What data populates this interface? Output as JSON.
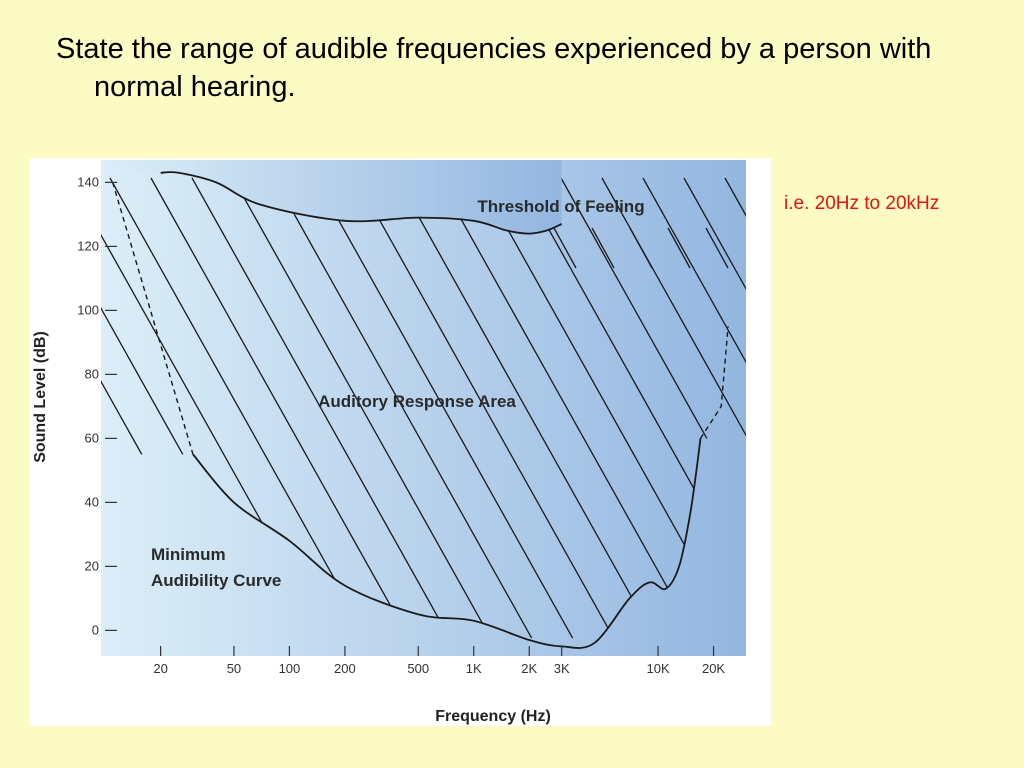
{
  "slide": {
    "question": "State the range of audible frequencies experienced by a person with normal hearing.",
    "answer": "i.e. 20Hz to 20kHz",
    "background_color": "#fdfbc4",
    "answer_color": "#e0150f"
  },
  "chart_data": {
    "type": "area",
    "title": "",
    "xlabel": "Frequency (Hz)",
    "ylabel": "Sound Level (dB)",
    "x_scale": "log",
    "x_ticks": [
      {
        "value": 20,
        "label": "20"
      },
      {
        "value": 50,
        "label": "50"
      },
      {
        "value": 100,
        "label": "100"
      },
      {
        "value": 200,
        "label": "200"
      },
      {
        "value": 500,
        "label": "500"
      },
      {
        "value": 1000,
        "label": "1K"
      },
      {
        "value": 2000,
        "label": "2K"
      },
      {
        "value": 3000,
        "label": "3K"
      },
      {
        "value": 10000,
        "label": "10K"
      },
      {
        "value": 20000,
        "label": "20K"
      }
    ],
    "y_ticks": [
      0,
      20,
      40,
      60,
      80,
      100,
      120,
      140
    ],
    "ylim": [
      -8,
      147
    ],
    "grid": false,
    "annotations": {
      "threshold_label": "Threshold of Feeling",
      "area_label": "Auditory Response Area",
      "min_curve_label_line1": "Minimum",
      "min_curve_label_line2": "Audibility Curve"
    },
    "series": [
      {
        "name": "Threshold of Feeling",
        "points": [
          [
            20,
            143
          ],
          [
            25,
            143
          ],
          [
            40,
            140
          ],
          [
            70,
            133
          ],
          [
            200,
            128
          ],
          [
            500,
            129
          ],
          [
            1000,
            128
          ],
          [
            1500,
            125
          ],
          [
            2000,
            124
          ],
          [
            2500,
            125
          ],
          [
            3000,
            127
          ]
        ]
      },
      {
        "name": "Minimum Audibility Curve",
        "points": [
          [
            30,
            55
          ],
          [
            50,
            40
          ],
          [
            100,
            28
          ],
          [
            200,
            14
          ],
          [
            500,
            5
          ],
          [
            1000,
            3
          ],
          [
            2000,
            -3
          ],
          [
            3000,
            -5
          ],
          [
            4500,
            -4
          ],
          [
            7000,
            10
          ],
          [
            9000,
            15
          ],
          [
            11000,
            13
          ],
          [
            13000,
            20
          ],
          [
            15000,
            37
          ],
          [
            17000,
            60
          ]
        ]
      }
    ],
    "colors": {
      "plot_background_left": "#dceef8",
      "plot_background_right": "#93b6e0",
      "curve": "#1a1a1a"
    }
  }
}
